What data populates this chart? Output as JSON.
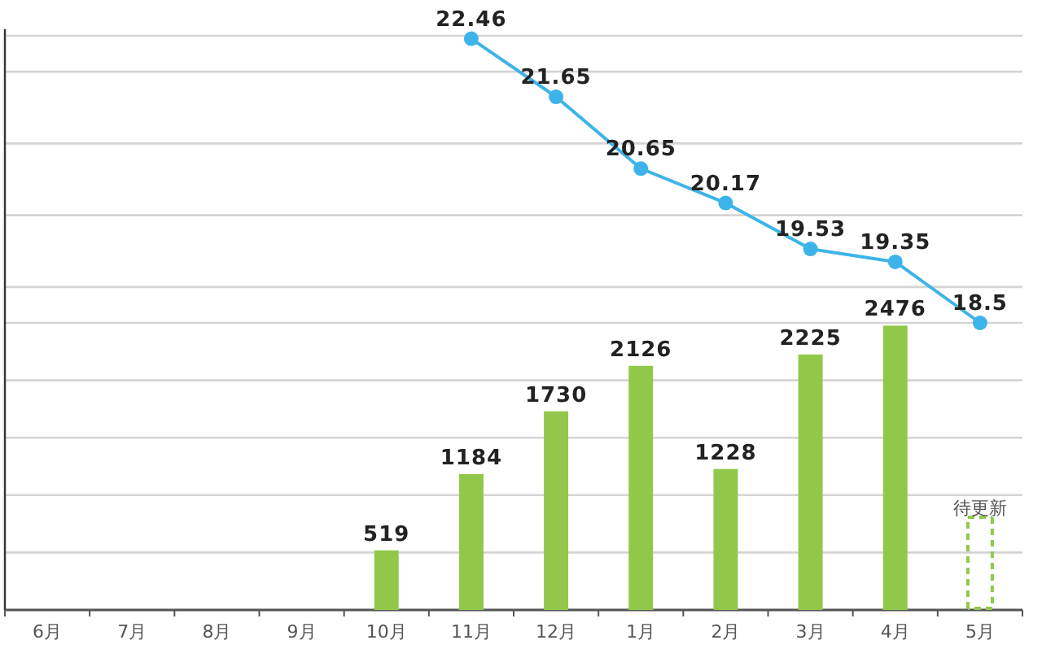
{
  "chart_data": {
    "type": "bar",
    "categories": [
      "6月",
      "7月",
      "8月",
      "9月",
      "10月",
      "11月",
      "12月",
      "1月",
      "2月",
      "3月",
      "4月",
      "5月"
    ],
    "series": [
      {
        "color": "#92c84a",
        "values": [
          null,
          null,
          null,
          null,
          519,
          1184,
          1730,
          2126,
          1228,
          2225,
          2476,
          null
        ]
      },
      {
        "type": "line",
        "axis": "y2",
        "color": "#3cb4e9",
        "values": [
          null,
          null,
          null,
          null,
          null,
          22.46,
          21.65,
          20.65,
          20.17,
          19.53,
          19.35,
          18.5
        ]
      }
    ],
    "ylim": [
      0,
      5000
    ],
    "yticks": [
      {
        "value": 0,
        "label": null
      },
      {
        "value": 500,
        "label": null
      },
      {
        "value": 1000,
        "label": null
      },
      {
        "value": 1500,
        "label": null
      },
      {
        "value": 2000,
        "label": null
      },
      {
        "value": 2500,
        "label": null
      }
    ],
    "y2lim": [
      14.5,
      22.5
    ],
    "y2ticks": [
      {
        "value": 19,
        "label": null
      },
      {
        "value": 20,
        "label": null
      },
      {
        "value": 21,
        "label": null
      },
      {
        "value": 22,
        "label": null
      },
      {
        "value": 22.5,
        "label": null
      }
    ],
    "tick_labels": "x",
    "grid": true,
    "marker": "circle",
    "data_labels": true,
    "annotations": [
      "待更新"
    ]
  }
}
